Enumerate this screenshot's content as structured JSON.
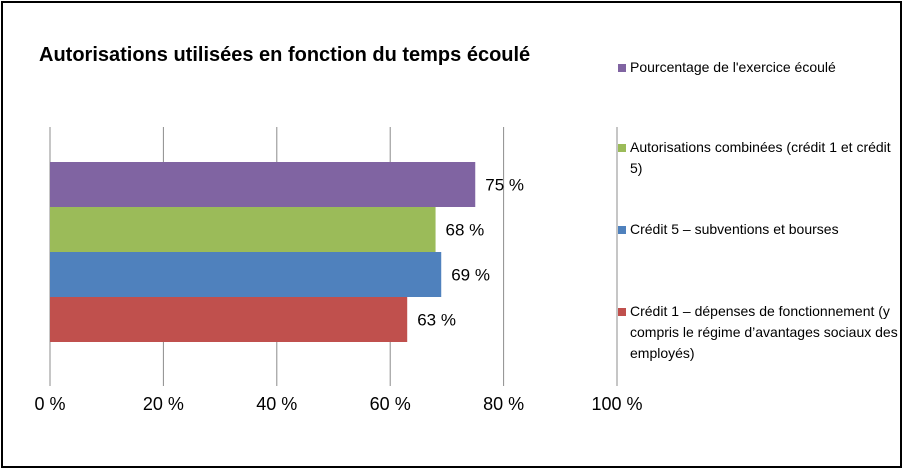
{
  "chart_data": {
    "type": "bar",
    "orientation": "horizontal",
    "title": "Autorisations utilisées en fonction du temps écoulé",
    "xlabel": "",
    "ylabel": "",
    "xlim": [
      0,
      100
    ],
    "x_ticks": [
      "0 %",
      "20 %",
      "40 %",
      "60 %",
      "80 %",
      "100 %"
    ],
    "grid": true,
    "legend_position": "right",
    "series": [
      {
        "name": "Pourcentage de l'exercice écoulé",
        "value": 75,
        "label": "75 %",
        "color": "#8064A2"
      },
      {
        "name": "Autorisations combinées (crédit 1 et crédit 5)",
        "value": 68,
        "label": "68 %",
        "color": "#9BBB59"
      },
      {
        "name": "Crédit 5 – subventions et bourses",
        "value": 69,
        "label": "69 %",
        "color": "#4F81BD"
      },
      {
        "name": "Crédit 1 – dépenses de fonctionnement (y compris le régime d’avantages sociaux des employés)",
        "value": 63,
        "label": "63 %",
        "color": "#C0504D"
      }
    ]
  }
}
